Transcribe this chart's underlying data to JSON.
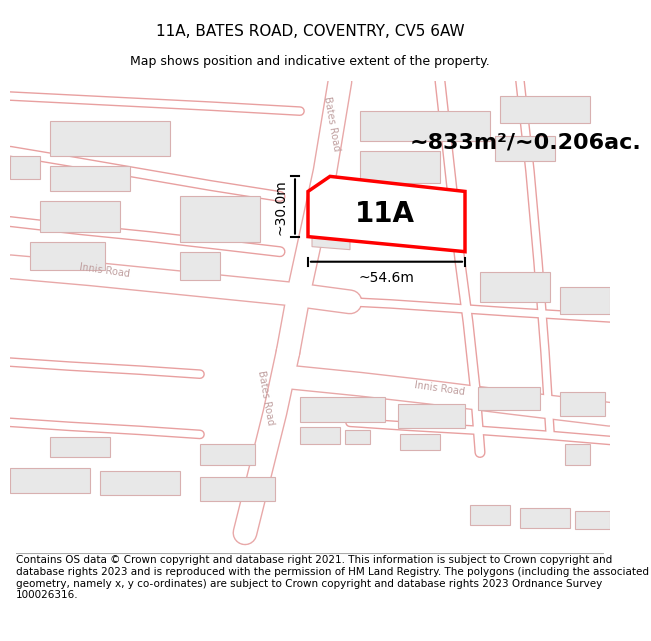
{
  "title": "11A, BATES ROAD, COVENTRY, CV5 6AW",
  "subtitle": "Map shows position and indicative extent of the property.",
  "footer": "Contains OS data © Crown copyright and database right 2021. This information is subject to Crown copyright and database rights 2023 and is reproduced with the permission of HM Land Registry. The polygons (including the associated geometry, namely x, y co-ordinates) are subject to Crown copyright and database rights 2023 Ordnance Survey 100026316.",
  "area_label": "~833m²/~0.206ac.",
  "width_label": "~54.6m",
  "height_label": "~30.0m",
  "plot_label": "11A",
  "bg_color": "#ffffff",
  "road_edge_color": "#e8a8a8",
  "road_fill_color": "#ffffff",
  "building_fill": "#e8e8e8",
  "building_edge": "#d8b0b0",
  "highlight_color": "#ff0000",
  "highlight_fill": "#ffffff",
  "title_fontsize": 11,
  "subtitle_fontsize": 9,
  "footer_fontsize": 7.5,
  "area_label_fontsize": 16,
  "plot_label_fontsize": 20,
  "measure_fontsize": 10,
  "road_label_fontsize": 7,
  "road_label_color": "#c0a0a0"
}
